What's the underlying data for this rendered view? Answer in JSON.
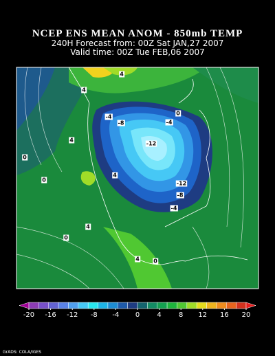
{
  "header": {
    "title": "NCEP ENS MEAN ANOM - 850mb TEMP",
    "forecast": "240H Forecast from: 00Z Sat JAN,27 2007",
    "valid": "Valid time: 00Z Tue FEB,06 2007"
  },
  "map": {
    "contour_labels": [
      4,
      4,
      -4,
      -8,
      -4,
      0,
      -12,
      4,
      0,
      0,
      -12,
      -8,
      -4,
      4,
      4,
      0,
      4,
      0
    ]
  },
  "colorbar": {
    "ticks": [
      -20,
      -16,
      -12,
      -8,
      -4,
      0,
      4,
      8,
      12,
      16,
      20
    ],
    "colors": [
      "#a00096",
      "#8c3cb4",
      "#7850c8",
      "#6464d2",
      "#5a82e6",
      "#50a0f0",
      "#46c8f5",
      "#28e6f0",
      "#1eb4e6",
      "#1e8cd2",
      "#1e5aaa",
      "#1e3c82",
      "#14646e",
      "#148c64",
      "#14a050",
      "#1eb43c",
      "#50c832",
      "#a0dc28",
      "#e6dc1e",
      "#f0b41e",
      "#f08c1e",
      "#e6641e",
      "#d2321e",
      "#e61e1e"
    ]
  },
  "footer": {
    "credit": "GrADS: COLA/IGES"
  }
}
